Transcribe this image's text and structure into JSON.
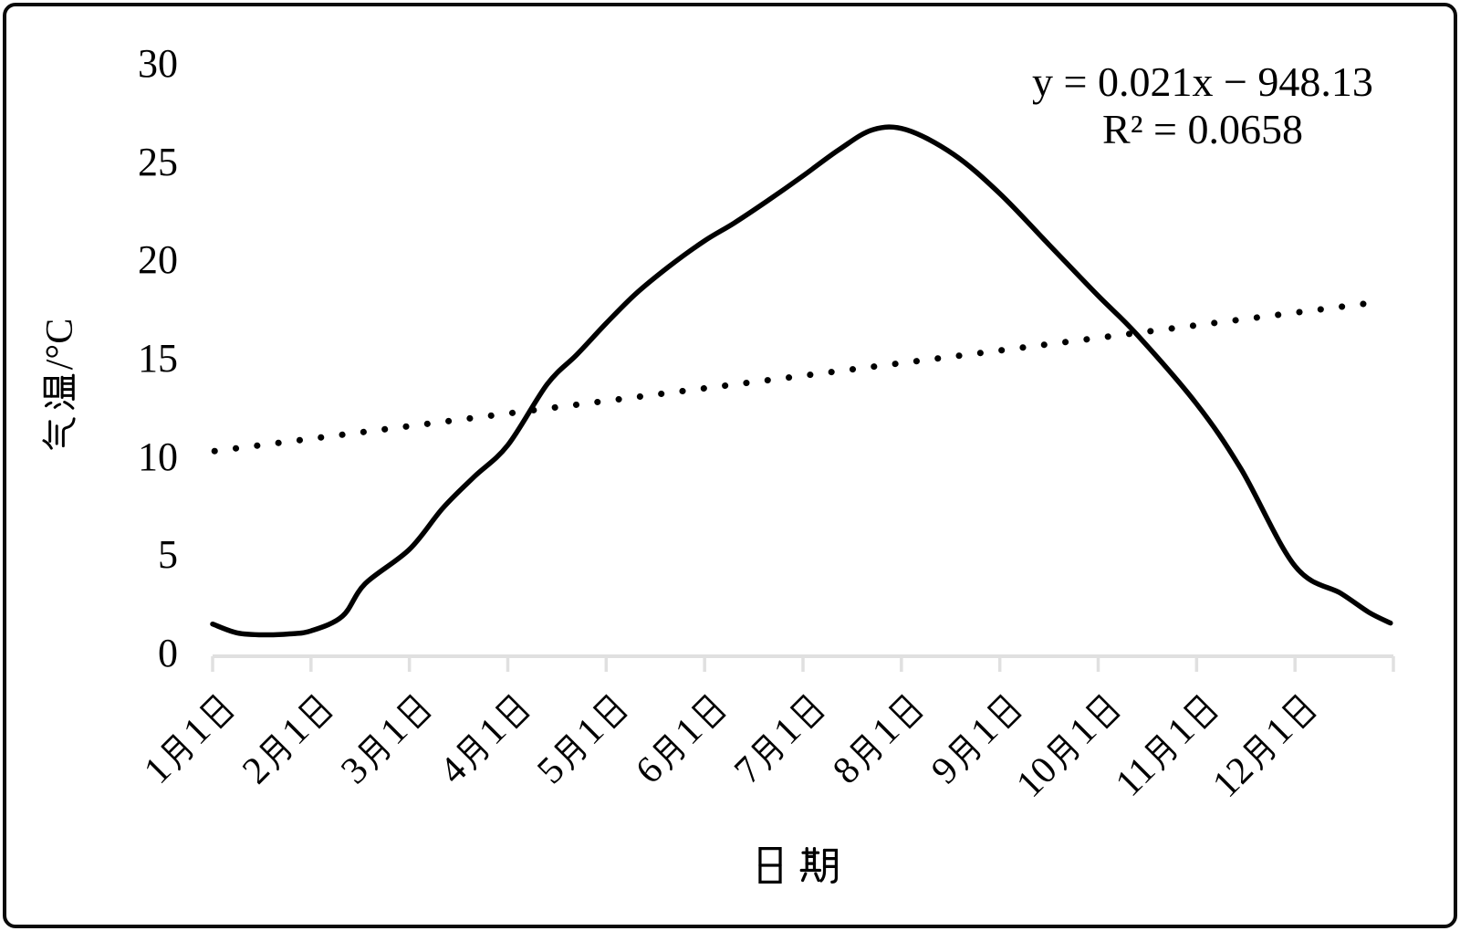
{
  "figure": {
    "background": "#ffffff",
    "border_color": "#0a0a0a"
  },
  "equation": {
    "line1": "y = 0.021x − 948.13",
    "line2": "R² = 0.0658"
  },
  "colors": {
    "curve": "#000000",
    "trendline": "#000000",
    "axis": "#e0e0e0",
    "text": "#000000"
  },
  "chart_data": {
    "type": "line",
    "title": "",
    "xlabel": "日期",
    "ylabel": "气温/°C",
    "ylim": [
      0,
      30
    ],
    "y_ticks": [
      0,
      5,
      10,
      15,
      20,
      25,
      30
    ],
    "grid": false,
    "legend": "none",
    "categories": [
      "1月1日",
      "2月1日",
      "3月1日",
      "4月1日",
      "5月1日",
      "6月1日",
      "7月1日",
      "8月1日",
      "9月1日",
      "10月1日",
      "11月1日",
      "12月1日"
    ],
    "series": [
      {
        "name": "daily-mean-temperature-curve",
        "style": "solid",
        "color": "#000000",
        "values_at_month_starts": [
          1.5,
          1.2,
          5.3,
          10.6,
          16.8,
          21.0,
          24.3,
          26.7,
          23.4,
          18.2,
          12.7,
          4.5
        ],
        "year_end_value": 1.6,
        "peak_value": 26.8,
        "min_value": 1.0,
        "dense_samples_month_value": [
          [
            0,
            1.5
          ],
          [
            0.25,
            1.05
          ],
          [
            0.53,
            0.95
          ],
          [
            0.78,
            1.0
          ],
          [
            1,
            1.15
          ],
          [
            1.32,
            1.9
          ],
          [
            1.55,
            3.55
          ],
          [
            2,
            5.3
          ],
          [
            2.34,
            7.4
          ],
          [
            2.66,
            9.0
          ],
          [
            3,
            10.6
          ],
          [
            3.4,
            13.7
          ],
          [
            3.7,
            15.2
          ],
          [
            4,
            16.8
          ],
          [
            4.3,
            18.3
          ],
          [
            4.64,
            19.7
          ],
          [
            5,
            21.0
          ],
          [
            5.3,
            21.9
          ],
          [
            5.63,
            23.0
          ],
          [
            6,
            24.3
          ],
          [
            6.37,
            25.65
          ],
          [
            6.71,
            26.65
          ],
          [
            7.05,
            26.65
          ],
          [
            7.53,
            25.4
          ],
          [
            8,
            23.4
          ],
          [
            8.5,
            20.8
          ],
          [
            9,
            18.2
          ],
          [
            9.39,
            16.25
          ],
          [
            10,
            12.7
          ],
          [
            10.45,
            9.4
          ],
          [
            11,
            4.45
          ],
          [
            11.47,
            3.05
          ],
          [
            11.75,
            2.1
          ],
          [
            11.97,
            1.55
          ]
        ]
      },
      {
        "name": "linear-trendline",
        "style": "dotted",
        "color": "#000000",
        "equation": "y = 0.021x − 948.13",
        "r_squared": 0.0658,
        "start_value": 10.3,
        "end_value": 17.9
      }
    ]
  }
}
